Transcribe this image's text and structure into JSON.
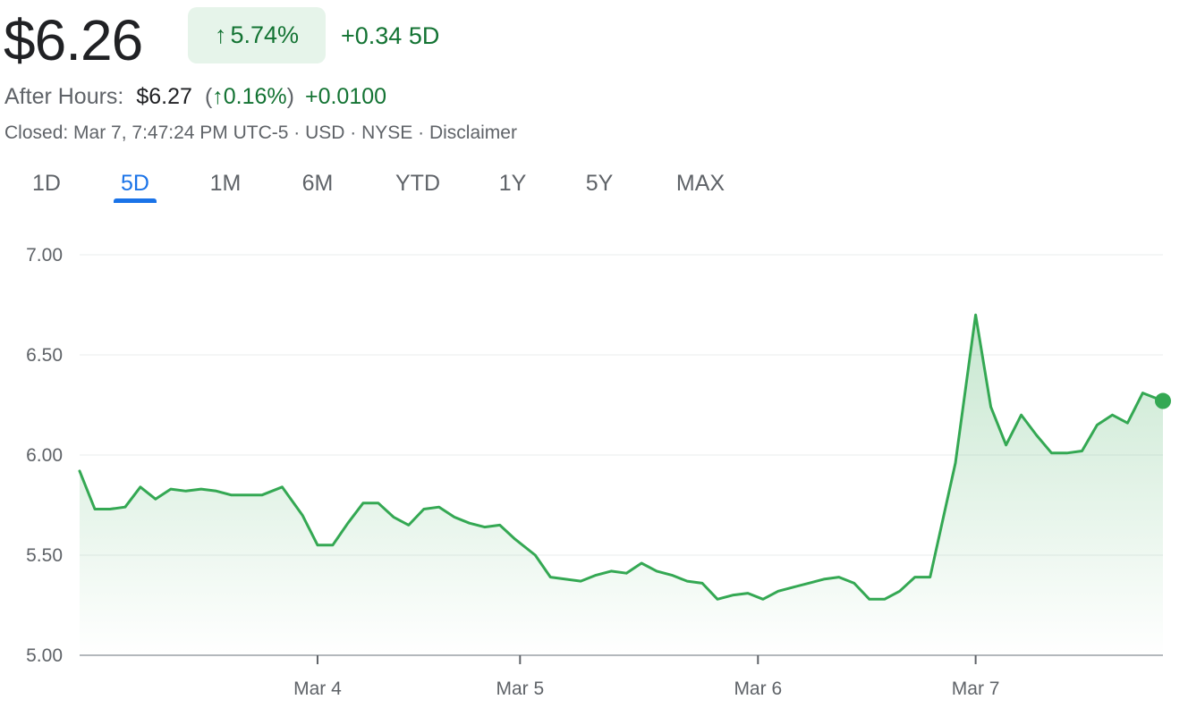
{
  "quote": {
    "price": "$6.26",
    "change_pct_arrow": "↑",
    "change_pct": "5.74%",
    "change_abs": "+0.34 5D",
    "after_hours_label": "After Hours:",
    "after_hours_price": "$6.27",
    "after_hours_pct_open": "(",
    "after_hours_arrow": "↑",
    "after_hours_pct": "0.16%",
    "after_hours_pct_close": ")",
    "after_hours_change": "+0.0100",
    "meta": "Closed: Mar 7, 7:47:24 PM UTC-5 · USD · NYSE · Disclaimer"
  },
  "tabs": [
    {
      "label": "1D",
      "active": false
    },
    {
      "label": "5D",
      "active": true
    },
    {
      "label": "1M",
      "active": false
    },
    {
      "label": "6M",
      "active": false
    },
    {
      "label": "YTD",
      "active": false
    },
    {
      "label": "1Y",
      "active": false
    },
    {
      "label": "5Y",
      "active": false
    },
    {
      "label": "MAX",
      "active": false
    }
  ],
  "colors": {
    "line": "#34a853",
    "fill_top": "#34a853",
    "grid": "#f1f3f4",
    "axis": "#9aa0a6"
  },
  "chart_data": {
    "type": "area",
    "ylim": [
      5.0,
      7.0
    ],
    "y_ticks": [
      {
        "value": 7.0,
        "label": "7.00"
      },
      {
        "value": 6.5,
        "label": "6.50"
      },
      {
        "value": 6.0,
        "label": "6.00"
      },
      {
        "value": 5.5,
        "label": "5.50"
      },
      {
        "value": 5.0,
        "label": "5.00"
      }
    ],
    "x_ticks": [
      {
        "t": 23.5,
        "label": "Mar 4"
      },
      {
        "t": 43.5,
        "label": "Mar 5"
      },
      {
        "t": 67,
        "label": "Mar 6"
      },
      {
        "t": 88.5,
        "label": "Mar 7"
      }
    ],
    "x_range": [
      0,
      107
    ],
    "values": [
      5.92,
      5.73,
      5.73,
      5.74,
      5.84,
      5.78,
      5.83,
      5.82,
      5.83,
      5.82,
      5.8,
      5.8,
      5.8,
      5.84,
      5.7,
      5.55,
      5.55,
      5.66,
      5.76,
      5.76,
      5.69,
      5.65,
      5.73,
      5.74,
      5.69,
      5.66,
      5.64,
      5.65,
      5.58,
      5.5,
      5.39,
      5.38,
      5.37,
      5.4,
      5.42,
      5.41,
      5.46,
      5.42,
      5.4,
      5.37,
      5.36,
      5.28,
      5.3,
      5.31,
      5.28,
      5.32,
      5.34,
      5.36,
      5.38,
      5.39,
      5.36,
      5.28,
      5.28,
      5.32,
      5.39,
      5.39,
      5.96,
      6.7,
      6.24,
      6.05,
      6.2,
      6.1,
      6.01,
      6.01,
      6.02,
      6.15,
      6.2,
      6.16,
      6.31,
      6.27
    ],
    "value_t": [
      0,
      1.5,
      3,
      4.5,
      6,
      7.5,
      9,
      10.5,
      12,
      13.5,
      15,
      16.5,
      18,
      20,
      22,
      23.5,
      25,
      26.5,
      28,
      29.5,
      31,
      32.5,
      34,
      35.5,
      37,
      38.5,
      40,
      41.5,
      43,
      45,
      46.5,
      48,
      49.5,
      51,
      52.5,
      54,
      55.5,
      57,
      58.5,
      60,
      61.5,
      63,
      64.5,
      66,
      67.5,
      69,
      70.5,
      72,
      73.5,
      75,
      76.5,
      78,
      79.5,
      81,
      82.5,
      84,
      86.5,
      88.5,
      90,
      91.5,
      93,
      94.5,
      96,
      97.5,
      99,
      100.5,
      102,
      103.5,
      105,
      107
    ]
  }
}
